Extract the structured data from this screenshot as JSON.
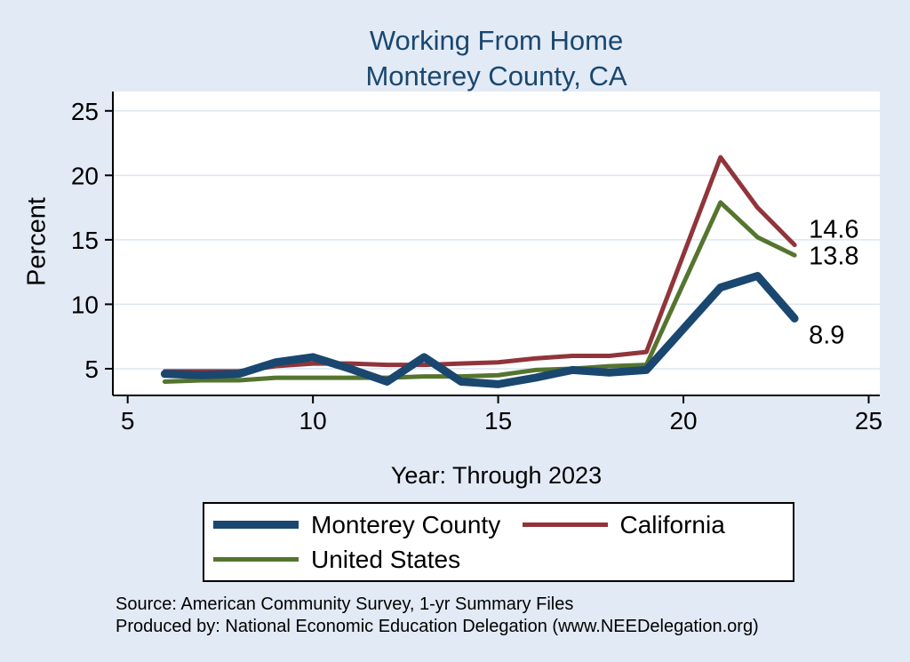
{
  "title": {
    "line1": "Working From Home",
    "line2": "Monterey County, CA"
  },
  "axes": {
    "y_label": "Percent",
    "x_label": "Year: Through 2023"
  },
  "chart_data": {
    "type": "line",
    "title": "Working From Home, Monterey County, CA",
    "xlabel": "Year: Through 2023",
    "ylabel": "Percent",
    "x_domain": [
      4.6,
      25.3
    ],
    "y_domain": [
      2.93,
      26.5
    ],
    "x_ticks": [
      5,
      10,
      15,
      20,
      25
    ],
    "y_ticks": [
      5,
      10,
      15,
      20,
      25
    ],
    "grid": "horizontal",
    "grid_color": "#dce5f2",
    "plot_bg": "#ffffff",
    "x": [
      6,
      7,
      8,
      9,
      10,
      11,
      12,
      13,
      14,
      15,
      16,
      17,
      18,
      19,
      21,
      22,
      23
    ],
    "series": [
      {
        "name": "United States",
        "color": "#55752f",
        "width": 5,
        "values": [
          4.0,
          4.1,
          4.1,
          4.3,
          4.3,
          4.3,
          4.3,
          4.4,
          4.4,
          4.5,
          4.9,
          5.0,
          5.2,
          5.3,
          17.9,
          15.2,
          13.8
        ],
        "end_label": "13.8",
        "label_dx": 16,
        "label_dy": 10
      },
      {
        "name": "California",
        "color": "#90353b",
        "width": 5,
        "values": [
          4.8,
          4.8,
          4.8,
          5.2,
          5.4,
          5.4,
          5.3,
          5.3,
          5.4,
          5.5,
          5.8,
          6.0,
          6.0,
          6.3,
          21.4,
          17.5,
          14.6
        ],
        "end_label": "14.6",
        "label_dx": 16,
        "label_dy": -8
      },
      {
        "name": "Monterey County",
        "color": "#1a476f",
        "width": 9,
        "values": [
          4.6,
          4.5,
          4.6,
          5.5,
          5.9,
          5.0,
          4.0,
          5.9,
          4.0,
          3.8,
          4.3,
          4.9,
          4.7,
          4.9,
          11.3,
          12.2,
          8.9
        ],
        "end_label": "8.9",
        "label_dx": 16,
        "label_dy": 28
      }
    ]
  },
  "legend": {
    "items": [
      {
        "label": "Monterey County",
        "color": "#1a476f"
      },
      {
        "label": "California",
        "color": "#90353b"
      },
      {
        "label": "United States",
        "color": "#55752f"
      }
    ]
  },
  "footer": {
    "line1": "Source: American Community Survey, 1-yr Summary Files",
    "line2": "Produced by: National Economic Education Delegation (www.NEEDelegation.org)"
  }
}
